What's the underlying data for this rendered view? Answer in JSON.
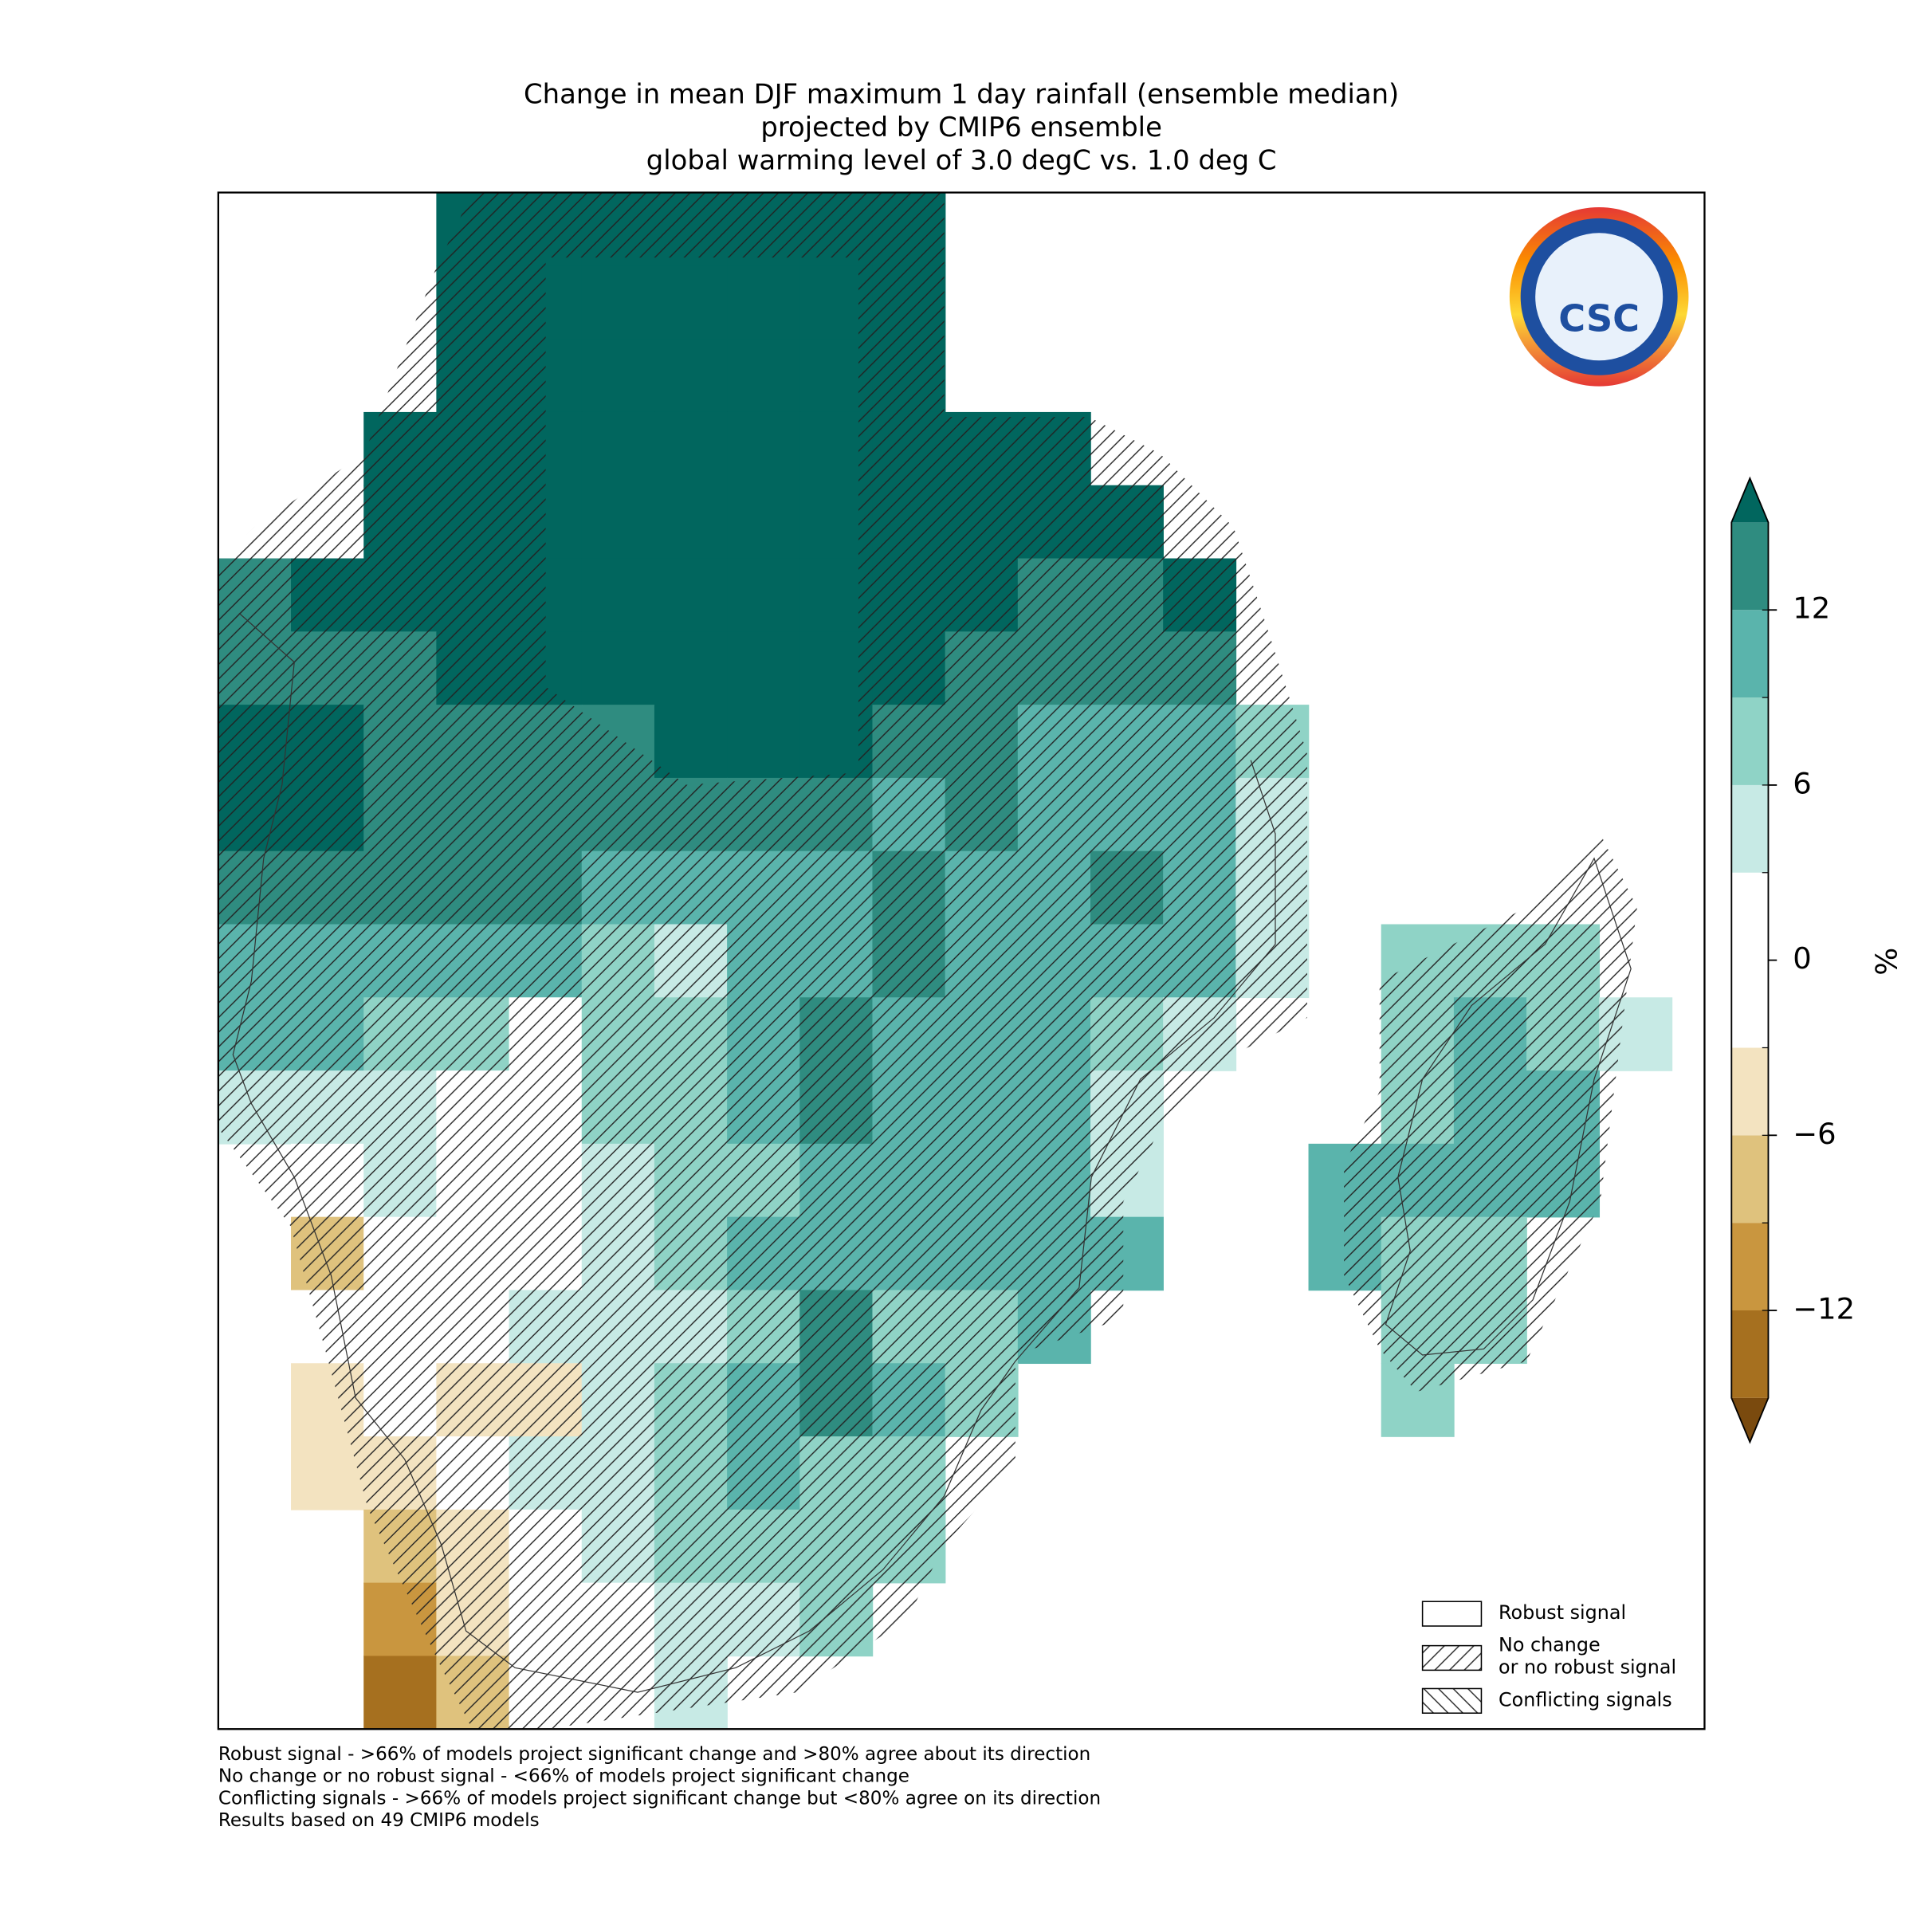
{
  "chart_data": {
    "type": "map",
    "title": [
      "Change in mean DJF maximum 1 day rainfall (ensemble median)",
      "projected by CMIP6 ensemble",
      "global warming level of 3.0 degC vs. 1.0 deg C"
    ],
    "colorbar_label": "%",
    "clim": [
      -15,
      15
    ],
    "levels": [
      -15,
      -12,
      -9,
      -6,
      -3,
      3,
      6,
      9,
      12,
      15
    ],
    "colors": [
      "#a6701f",
      "#c9963f",
      "#dfc27d",
      "#f3e3c0",
      "#ffffff",
      "#c7eae5",
      "#8fd3c6",
      "#5ab4ac",
      "#2f8c80"
    ],
    "under_color": "#7a4a0e",
    "over_color": "#01665e",
    "yticks": [
      12,
      6,
      0,
      {
        "value": -6,
        "label": "−6"
      },
      {
        "value": -12,
        "label": "−12"
      }
    ],
    "cells": [
      [
        null,
        null,
        null,
        17,
        17,
        17,
        17,
        17,
        17,
        17,
        null,
        null,
        null,
        null,
        null,
        null,
        null,
        null,
        null,
        null
      ],
      [
        null,
        null,
        null,
        17,
        17,
        17,
        17,
        17,
        17,
        17,
        null,
        null,
        null,
        null,
        null,
        null,
        null,
        null,
        null,
        null
      ],
      [
        null,
        null,
        null,
        17,
        17,
        17,
        17,
        17,
        17,
        17,
        null,
        null,
        null,
        null,
        null,
        null,
        null,
        null,
        null,
        null
      ],
      [
        null,
        null,
        17,
        17,
        17,
        17,
        17,
        17,
        17,
        17,
        17,
        17,
        null,
        null,
        null,
        null,
        null,
        null,
        null,
        null
      ],
      [
        null,
        null,
        17,
        17,
        17,
        17,
        17,
        17,
        17,
        17,
        17,
        17,
        17,
        null,
        null,
        null,
        null,
        null,
        null,
        null
      ],
      [
        13,
        17,
        17,
        17,
        17,
        17,
        17,
        17,
        17,
        17,
        17,
        13,
        13,
        17,
        null,
        null,
        null,
        null,
        null,
        null
      ],
      [
        13,
        13,
        13,
        17,
        17,
        17,
        17,
        17,
        17,
        17,
        13,
        13,
        13,
        13,
        null,
        null,
        null,
        null,
        null,
        null
      ],
      [
        17,
        17,
        13,
        13,
        13,
        13,
        17,
        17,
        17,
        13,
        13,
        10,
        10,
        10,
        7,
        null,
        null,
        null,
        null,
        null
      ],
      [
        17,
        17,
        13,
        13,
        13,
        13,
        13,
        13,
        13,
        10,
        13,
        10,
        10,
        10,
        4,
        null,
        null,
        null,
        null,
        null
      ],
      [
        13,
        13,
        13,
        13,
        13,
        10,
        10,
        10,
        10,
        13,
        10,
        10,
        13,
        10,
        4,
        null,
        null,
        null,
        null,
        null
      ],
      [
        10,
        10,
        10,
        10,
        10,
        7,
        4,
        10,
        10,
        13,
        10,
        10,
        10,
        10,
        4,
        null,
        7,
        7,
        7,
        null
      ],
      [
        10,
        10,
        7,
        7,
        0,
        7,
        7,
        10,
        13,
        10,
        10,
        10,
        7,
        4,
        null,
        null,
        7,
        10,
        7,
        4
      ],
      [
        4,
        4,
        4,
        0,
        0,
        7,
        7,
        10,
        13,
        10,
        10,
        10,
        4,
        null,
        null,
        null,
        7,
        10,
        10,
        null
      ],
      [
        null,
        0,
        4,
        0,
        0,
        4,
        7,
        7,
        10,
        10,
        10,
        10,
        4,
        null,
        null,
        10,
        10,
        10,
        10,
        null
      ],
      [
        null,
        -7,
        0,
        0,
        0,
        4,
        7,
        10,
        10,
        10,
        10,
        10,
        10,
        null,
        null,
        10,
        7,
        7,
        null,
        null
      ],
      [
        null,
        0,
        0,
        0,
        4,
        4,
        4,
        7,
        13,
        7,
        7,
        10,
        null,
        null,
        null,
        null,
        7,
        7,
        null,
        null
      ],
      [
        null,
        -4,
        0,
        -4,
        -4,
        4,
        7,
        10,
        13,
        10,
        7,
        null,
        null,
        null,
        null,
        null,
        7,
        null,
        null,
        null
      ],
      [
        null,
        -4,
        -4,
        0,
        4,
        4,
        7,
        10,
        7,
        7,
        null,
        null,
        null,
        null,
        null,
        null,
        null,
        null,
        null,
        null
      ],
      [
        null,
        null,
        -7,
        -4,
        0,
        4,
        7,
        7,
        7,
        7,
        null,
        null,
        null,
        null,
        null,
        null,
        null,
        null,
        null,
        null
      ],
      [
        null,
        null,
        -10,
        -4,
        0,
        0,
        4,
        4,
        7,
        null,
        null,
        null,
        null,
        null,
        null,
        null,
        null,
        null,
        null,
        null
      ],
      [
        null,
        null,
        -13,
        -7,
        0,
        0,
        4,
        null,
        null,
        null,
        null,
        null,
        null,
        null,
        null,
        null,
        null,
        null,
        null,
        null
      ]
    ],
    "legend": [
      "Robust signal",
      "No change\nor no robust signal",
      "Conflicting signals"
    ],
    "footnotes": [
      "Robust signal - >66% of models project significant change and >80% agree about its direction",
      "No change or no robust signal - <66% of models project significant change",
      "Conflicting signals - >66% of models project significant change but <80% agree on its direction",
      "Results based on 49 CMIP6 models"
    ],
    "logo_text": "CSC"
  }
}
